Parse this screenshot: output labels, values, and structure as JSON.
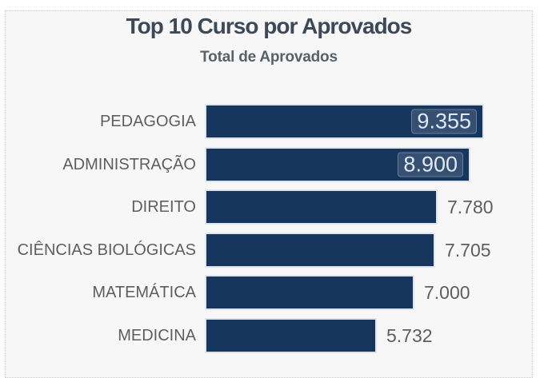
{
  "chart": {
    "title": "Top 10 Curso por Aprovados",
    "subtitle": "Total de Aprovados"
  },
  "chart_data": {
    "type": "bar",
    "orientation": "horizontal",
    "title": "Top 10 Curso por Aprovados",
    "subtitle": "Total de Aprovados",
    "categories": [
      "PEDAGOGIA",
      "ADMINISTRAÇÃO",
      "DIREITO",
      "CIÊNCIAS BIOLÓGICAS",
      "MATEMÁTICA",
      "MEDICINA"
    ],
    "values": [
      9355,
      8900,
      7780,
      7705,
      7000,
      5732
    ],
    "value_labels": [
      "9.355",
      "8.900",
      "7.780",
      "7.705",
      "7.000",
      "5.732"
    ],
    "label_inside": [
      true,
      true,
      false,
      false,
      false,
      false
    ],
    "xlim": [
      0,
      9355
    ],
    "bar_color": "#17365d",
    "label_color": "#605e5c",
    "legend": "off",
    "grid": "off"
  }
}
